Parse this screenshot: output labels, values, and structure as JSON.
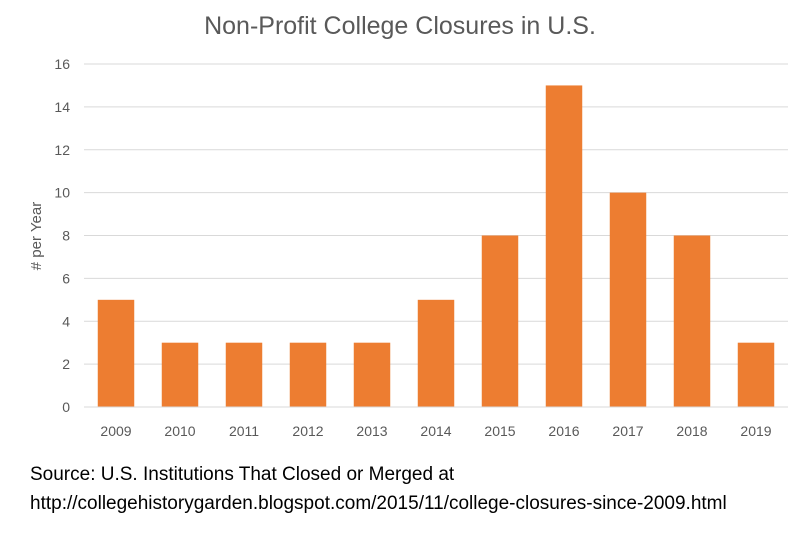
{
  "chart_data": {
    "type": "bar",
    "title": "Non-Profit College Closures in U.S.",
    "xlabel": "",
    "ylabel": "# per Year",
    "categories": [
      "2009",
      "2010",
      "2011",
      "2012",
      "2013",
      "2014",
      "2015",
      "2016",
      "2017",
      "2018",
      "2019"
    ],
    "values": [
      5,
      3,
      3,
      3,
      3,
      5,
      8,
      15,
      10,
      8,
      3
    ],
    "ylim": [
      0,
      16
    ],
    "yticks": [
      0,
      2,
      4,
      6,
      8,
      10,
      12,
      14,
      16
    ],
    "grid": true,
    "legend": "none",
    "bar_color": "#ED7D31"
  },
  "source": {
    "line1": "Source: U.S. Institutions That Closed or Merged at",
    "line2": "http://collegehistorygarden.blogspot.com/2015/11/college-closures-since-2009.html"
  }
}
